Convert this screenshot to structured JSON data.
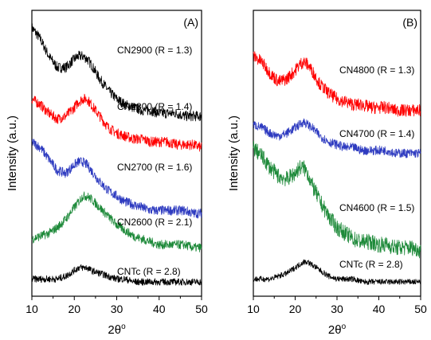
{
  "chart_data": [
    {
      "type": "line",
      "panel_label": "(A)",
      "xlabel": "2θ",
      "xlabel_sup": "o",
      "ylabel": "Intensity (a.u.)",
      "xlim": [
        10,
        50
      ],
      "xticks": [
        10,
        20,
        30,
        40,
        50
      ],
      "yticks_shown": false,
      "grid": false,
      "series": [
        {
          "name": "CN2900 (R = 1.3)",
          "color": "#000000",
          "x": [
            10,
            12,
            14,
            16,
            18,
            20,
            21,
            22,
            23,
            24,
            26,
            28,
            30,
            32,
            34,
            36,
            38,
            40,
            42,
            44,
            46,
            48,
            50
          ],
          "y": [
            94,
            90,
            84,
            80,
            80,
            83,
            84,
            84,
            83,
            81,
            76,
            72,
            69,
            67,
            66,
            65,
            65,
            64,
            64,
            64,
            63,
            63,
            63
          ]
        },
        {
          "name": "CN2800 (R = 1.4)",
          "color": "#ff0000",
          "x": [
            10,
            12,
            14,
            16,
            18,
            20,
            21,
            22,
            23,
            24,
            26,
            28,
            30,
            32,
            34,
            36,
            38,
            40,
            42,
            44,
            46,
            48,
            50
          ],
          "y": [
            69,
            67,
            64,
            62,
            63,
            66,
            68,
            69,
            69,
            67,
            63,
            59,
            57,
            56,
            55,
            55,
            54,
            54,
            54,
            53,
            53,
            53,
            52
          ]
        },
        {
          "name": "CN2700 (R = 1.6)",
          "color": "#2e3bc0",
          "x": [
            10,
            12,
            14,
            16,
            18,
            20,
            21,
            22,
            23,
            24,
            26,
            28,
            30,
            32,
            34,
            36,
            38,
            40,
            42,
            44,
            46,
            48,
            50
          ],
          "y": [
            54,
            52,
            48,
            44,
            43,
            46,
            47,
            47,
            46,
            44,
            40,
            37,
            35,
            33,
            32,
            31,
            30,
            30,
            30,
            30,
            30,
            29,
            29
          ]
        },
        {
          "name": "CN2600 (R = 2.1)",
          "color": "#1e8a3a",
          "x": [
            10,
            12,
            14,
            16,
            18,
            20,
            21,
            22,
            23,
            24,
            26,
            28,
            30,
            32,
            34,
            36,
            38,
            40,
            42,
            44,
            46,
            48,
            50
          ],
          "y": [
            20,
            21,
            22,
            24,
            27,
            31,
            33,
            35,
            35,
            34,
            31,
            28,
            25,
            23,
            21,
            20,
            19,
            18,
            18,
            18,
            18,
            17,
            17
          ]
        },
        {
          "name": "CNTc (R = 2.8)",
          "color": "#000000",
          "x": [
            10,
            12,
            14,
            16,
            18,
            20,
            21,
            22,
            23,
            24,
            26,
            28,
            30,
            32,
            34,
            36,
            38,
            40,
            42,
            44,
            46,
            48,
            50
          ],
          "y": [
            6,
            6,
            6,
            6,
            7,
            9,
            10,
            10,
            10,
            9,
            8,
            7,
            6,
            6,
            5,
            5,
            5,
            5,
            5,
            5,
            5,
            5,
            5
          ]
        }
      ]
    },
    {
      "type": "line",
      "panel_label": "(B)",
      "xlabel": "2θ",
      "xlabel_sup": "o",
      "ylabel": "Intensity (a.u.)",
      "xlim": [
        10,
        50
      ],
      "xticks": [
        10,
        20,
        30,
        40,
        50
      ],
      "yticks_shown": false,
      "grid": false,
      "series": [
        {
          "name": "CN4800 (R = 1.3)",
          "color": "#ff0000",
          "x": [
            10,
            12,
            14,
            16,
            18,
            20,
            21,
            22,
            23,
            24,
            26,
            28,
            30,
            32,
            34,
            36,
            38,
            40,
            42,
            44,
            46,
            48,
            50
          ],
          "y": [
            84,
            82,
            78,
            75,
            76,
            79,
            81,
            82,
            81,
            79,
            74,
            71,
            69,
            68,
            67,
            67,
            66,
            66,
            66,
            65,
            65,
            65,
            65
          ]
        },
        {
          "name": "CN4700 (R = 1.4)",
          "color": "#2e3bc0",
          "x": [
            10,
            12,
            14,
            16,
            18,
            20,
            21,
            22,
            23,
            24,
            26,
            28,
            30,
            32,
            34,
            36,
            38,
            40,
            42,
            44,
            46,
            48,
            50
          ],
          "y": [
            60,
            59,
            57,
            56,
            57,
            59,
            60,
            61,
            60,
            59,
            56,
            54,
            53,
            52,
            52,
            51,
            51,
            51,
            51,
            50,
            50,
            50,
            50
          ]
        },
        {
          "name": "CN4600 (R = 1.5)",
          "color": "#1e8a3a",
          "x": [
            10,
            12,
            14,
            16,
            18,
            20,
            21,
            22,
            23,
            24,
            26,
            28,
            30,
            32,
            34,
            36,
            38,
            40,
            42,
            44,
            46,
            48,
            50
          ],
          "y": [
            52,
            49,
            45,
            42,
            41,
            43,
            45,
            45,
            43,
            39,
            33,
            28,
            24,
            22,
            20,
            19,
            19,
            18,
            18,
            17,
            17,
            17,
            16
          ]
        },
        {
          "name": "CNTc (R = 2.8)",
          "color": "#000000",
          "x": [
            10,
            12,
            14,
            16,
            18,
            20,
            21,
            22,
            23,
            24,
            26,
            28,
            30,
            32,
            34,
            36,
            38,
            40,
            42,
            44,
            46,
            48,
            50
          ],
          "y": [
            6,
            6,
            6,
            7,
            8,
            10,
            11,
            12,
            12,
            11,
            9,
            7,
            6,
            6,
            6,
            5,
            5,
            5,
            5,
            5,
            5,
            5,
            5
          ]
        }
      ]
    }
  ]
}
